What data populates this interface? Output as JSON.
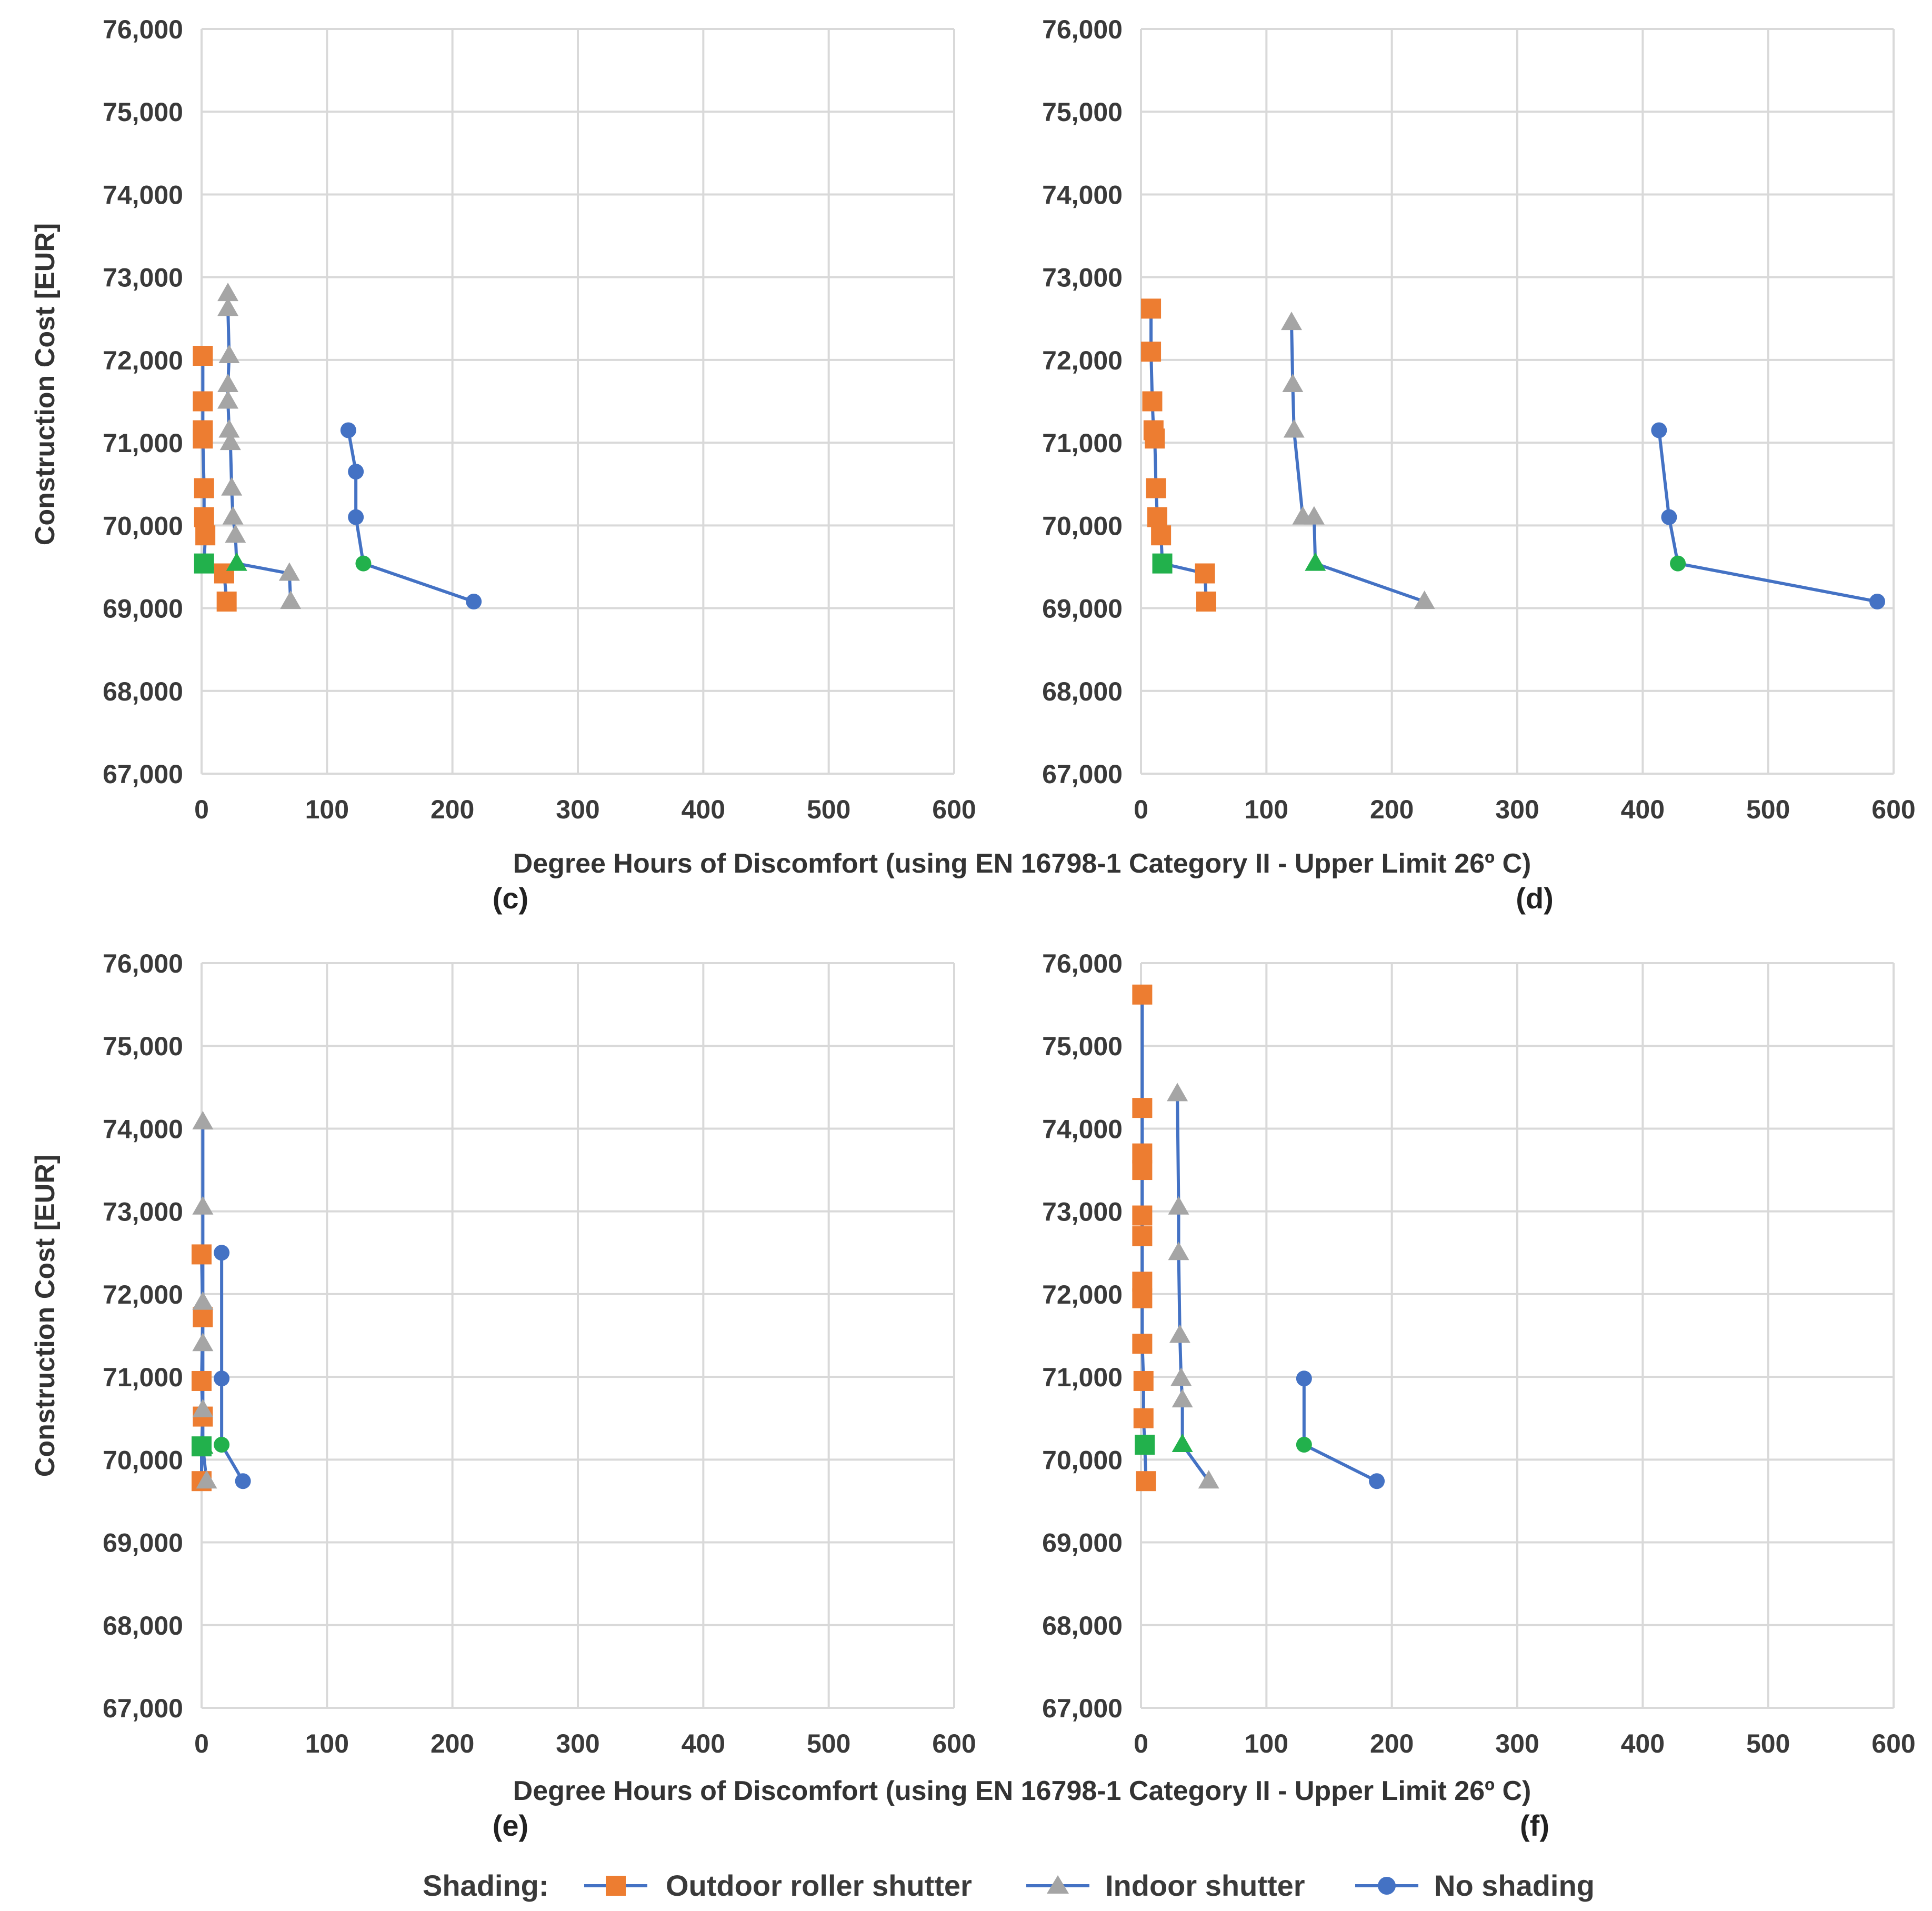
{
  "x_axis_title": "Degree Hours of Discomfort (using EN 16798-1 Category II - Upper Limit 26º C)",
  "y_axis_title": "Construction Cost [EUR]",
  "legend": {
    "title": "Shading:",
    "items": [
      {
        "label": "Outdoor roller shutter",
        "marker": "square",
        "color": "#ED7D31"
      },
      {
        "label": "Indoor shutter",
        "marker": "triangle",
        "color": "#A5A5A5"
      },
      {
        "label": "No shading",
        "marker": "circle",
        "color": "#4472C4"
      }
    ]
  },
  "colors": {
    "line": "#4472C4",
    "highlight": "#22B14C",
    "grid": "#d9d9d9"
  },
  "chart_data": [
    {
      "type": "line",
      "panel": "(c)",
      "xlim": [
        0,
        600
      ],
      "ylim": [
        67000,
        76000
      ],
      "xticks": [
        0,
        100,
        200,
        300,
        400,
        500,
        600
      ],
      "yticks": [
        67000,
        68000,
        69000,
        70000,
        71000,
        72000,
        73000,
        74000,
        75000,
        76000
      ],
      "xtick_labels": [
        "0",
        "100",
        "200",
        "300",
        "400",
        "500",
        "600"
      ],
      "ytick_labels": [
        "67,000",
        "68,000",
        "69,000",
        "70,000",
        "71,000",
        "72,000",
        "73,000",
        "74,000",
        "75,000",
        "76,000"
      ],
      "series": [
        {
          "name": "Outdoor roller shutter",
          "marker": "square",
          "points": [
            [
              20,
              69080
            ],
            [
              18,
              69420
            ],
            [
              2,
              69540
            ],
            [
              3,
              69880
            ],
            [
              2,
              70100
            ],
            [
              2,
              70450
            ],
            [
              1,
              71050
            ],
            [
              1,
              71150
            ],
            [
              1,
              71500
            ],
            [
              1,
              72050
            ]
          ],
          "highlight_index": 2
        },
        {
          "name": "Indoor shutter",
          "marker": "triangle",
          "points": [
            [
              71,
              69080
            ],
            [
              70,
              69420
            ],
            [
              28,
              69540
            ],
            [
              27,
              69880
            ],
            [
              25,
              70100
            ],
            [
              24,
              70450
            ],
            [
              23,
              71000
            ],
            [
              22,
              71150
            ],
            [
              21,
              71500
            ],
            [
              21,
              71700
            ],
            [
              22,
              72050
            ],
            [
              21,
              72620
            ],
            [
              21,
              72800
            ]
          ],
          "highlight_index": 2
        },
        {
          "name": "No shading",
          "marker": "circle",
          "points": [
            [
              217,
              69080
            ],
            [
              129,
              69540
            ],
            [
              123,
              70100
            ],
            [
              123,
              70650
            ],
            [
              117,
              71150
            ]
          ],
          "highlight_index": 1
        }
      ]
    },
    {
      "type": "line",
      "panel": "(d)",
      "xlim": [
        0,
        600
      ],
      "ylim": [
        67000,
        76000
      ],
      "xticks": [
        0,
        100,
        200,
        300,
        400,
        500,
        600
      ],
      "yticks": [
        67000,
        68000,
        69000,
        70000,
        71000,
        72000,
        73000,
        74000,
        75000,
        76000
      ],
      "xtick_labels": [
        "0",
        "100",
        "200",
        "300",
        "400",
        "500",
        "600"
      ],
      "ytick_labels": [
        "67,000",
        "68,000",
        "69,000",
        "70,000",
        "71,000",
        "72,000",
        "73,000",
        "74,000",
        "75,000",
        "76,000"
      ],
      "series": [
        {
          "name": "Outdoor roller shutter",
          "marker": "square",
          "points": [
            [
              52,
              69080
            ],
            [
              51,
              69420
            ],
            [
              17,
              69540
            ],
            [
              16,
              69880
            ],
            [
              13,
              70100
            ],
            [
              12,
              70450
            ],
            [
              11,
              71050
            ],
            [
              10,
              71150
            ],
            [
              9,
              71500
            ],
            [
              8,
              72100
            ],
            [
              8,
              72620
            ]
          ],
          "highlight_index": 2
        },
        {
          "name": "Indoor shutter",
          "marker": "triangle",
          "points": [
            [
              226,
              69080
            ],
            [
              139,
              69540
            ],
            [
              138,
              70100
            ],
            [
              129,
              70100
            ],
            [
              122,
              71150
            ],
            [
              121,
              71700
            ],
            [
              120,
              72450
            ]
          ],
          "highlight_index": 1
        },
        {
          "name": "No shading",
          "marker": "circle",
          "points": [
            [
              587,
              69080
            ],
            [
              428,
              69540
            ],
            [
              421,
              70100
            ],
            [
              413,
              71150
            ]
          ],
          "highlight_index": 1
        }
      ]
    },
    {
      "type": "line",
      "panel": "(e)",
      "xlim": [
        0,
        600
      ],
      "ylim": [
        67000,
        76000
      ],
      "xticks": [
        0,
        100,
        200,
        300,
        400,
        500,
        600
      ],
      "yticks": [
        67000,
        68000,
        69000,
        70000,
        71000,
        72000,
        73000,
        74000,
        75000,
        76000
      ],
      "xtick_labels": [
        "0",
        "100",
        "200",
        "300",
        "400",
        "500",
        "600"
      ],
      "ytick_labels": [
        "67,000",
        "68,000",
        "69,000",
        "70,000",
        "71,000",
        "72,000",
        "73,000",
        "74,000",
        "75,000",
        "76,000"
      ],
      "series": [
        {
          "name": "Outdoor roller shutter",
          "marker": "square",
          "points": [
            [
              0,
              69740
            ],
            [
              0,
              70160
            ],
            [
              1,
              70520
            ],
            [
              0,
              70950
            ],
            [
              1,
              71720
            ],
            [
              0,
              72480
            ]
          ],
          "highlight_index": 1
        },
        {
          "name": "Indoor shutter",
          "marker": "triangle",
          "points": [
            [
              4,
              69740
            ],
            [
              1,
              70160
            ],
            [
              1,
              70600
            ],
            [
              1,
              71400
            ],
            [
              1,
              71900
            ],
            [
              1,
              73050
            ],
            [
              1,
              74080
            ]
          ],
          "highlight_index": 1
        },
        {
          "name": "No shading",
          "marker": "circle",
          "points": [
            [
              33,
              69740
            ],
            [
              16,
              70180
            ],
            [
              16,
              70980
            ],
            [
              16,
              72500
            ]
          ],
          "highlight_index": 1
        }
      ]
    },
    {
      "type": "line",
      "panel": "(f)",
      "xlim": [
        0,
        600
      ],
      "ylim": [
        67000,
        76000
      ],
      "xticks": [
        0,
        100,
        200,
        300,
        400,
        500,
        600
      ],
      "yticks": [
        67000,
        68000,
        69000,
        70000,
        71000,
        72000,
        73000,
        74000,
        75000,
        76000
      ],
      "xtick_labels": [
        "0",
        "100",
        "200",
        "300",
        "400",
        "500",
        "600"
      ],
      "ytick_labels": [
        "67,000",
        "68,000",
        "69,000",
        "70,000",
        "71,000",
        "72,000",
        "73,000",
        "74,000",
        "75,000",
        "76,000"
      ],
      "series": [
        {
          "name": "Outdoor roller shutter",
          "marker": "square",
          "points": [
            [
              4,
              69740
            ],
            [
              3,
              70180
            ],
            [
              2,
              70500
            ],
            [
              2,
              70950
            ],
            [
              1,
              71400
            ],
            [
              1,
              71950
            ],
            [
              1,
              72150
            ],
            [
              1,
              72700
            ],
            [
              1,
              72950
            ],
            [
              1,
              73500
            ],
            [
              1,
              73700
            ],
            [
              1,
              74250
            ],
            [
              1,
              75620
            ]
          ],
          "highlight_index": 1
        },
        {
          "name": "Indoor shutter",
          "marker": "triangle",
          "points": [
            [
              54,
              69740
            ],
            [
              33,
              70180
            ],
            [
              33,
              70720
            ],
            [
              32,
              70980
            ],
            [
              31,
              71500
            ],
            [
              30,
              72500
            ],
            [
              30,
              73050
            ],
            [
              29,
              74420
            ]
          ],
          "highlight_index": 1
        },
        {
          "name": "No shading",
          "marker": "circle",
          "points": [
            [
              188,
              69740
            ],
            [
              130,
              70180
            ],
            [
              130,
              70980
            ]
          ],
          "highlight_index": 1
        }
      ]
    }
  ]
}
